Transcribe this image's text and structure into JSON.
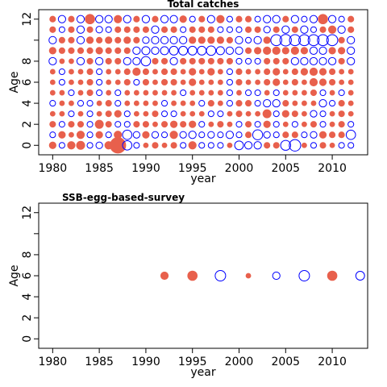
{
  "colors": {
    "positive": "#e8604c",
    "negative": "#0000ff"
  },
  "chart_data": [
    {
      "type": "scatter",
      "title": "Total catches",
      "xlabel": "year",
      "ylabel": "Age",
      "xlim": [
        1978.5,
        2013.8
      ],
      "ylim": [
        -0.9,
        12.9
      ],
      "xticks": [
        1980,
        1985,
        1990,
        1995,
        2000,
        2005,
        2010
      ],
      "yticks": [
        0,
        2,
        4,
        6,
        8,
        12
      ],
      "years": [
        1980,
        1981,
        1982,
        1983,
        1984,
        1985,
        1986,
        1987,
        1988,
        1989,
        1990,
        1991,
        1992,
        1993,
        1994,
        1995,
        1996,
        1997,
        1998,
        1999,
        2000,
        2001,
        2002,
        2003,
        2004,
        2005,
        2006,
        2007,
        2008,
        2009,
        2010,
        2011,
        2012
      ],
      "ages": [
        0,
        1,
        2,
        3,
        4,
        5,
        6,
        7,
        8,
        9,
        10,
        11,
        12
      ],
      "residuals": [
        [
          0.4,
          -0.3,
          0.5,
          0.6,
          -0.3,
          -0.4,
          0.5,
          2.2,
          -0.8,
          -0.3,
          0.2,
          0.3,
          0.2,
          0.3,
          -0.3,
          0.5,
          -0.3,
          -0.3,
          -0.3,
          0.2,
          -0.7,
          -0.5,
          -0.5,
          0.3,
          0.3,
          -0.9,
          -1.2,
          0.2,
          -0.3,
          0.3,
          0.2,
          -0.3,
          -0.3
        ],
        [
          -0.3,
          0.4,
          0.2,
          0.5,
          -0.3,
          0.4,
          -0.3,
          0.5,
          -0.8,
          -0.4,
          0.4,
          -0.4,
          -0.3,
          0.5,
          -0.4,
          -0.5,
          -0.3,
          -0.4,
          -0.3,
          -0.5,
          -0.3,
          0.3,
          -0.9,
          -0.4,
          -0.3,
          0.3,
          0.3,
          -0.3,
          -0.4,
          0.4,
          0.3,
          0.3,
          -0.8
        ],
        [
          0.3,
          -0.3,
          0.3,
          0.3,
          -0.3,
          0.6,
          0.3,
          -0.3,
          -0.3,
          0.3,
          0.3,
          0.2,
          0.3,
          0.4,
          0.3,
          0.4,
          -0.3,
          0.2,
          0.3,
          0.2,
          -0.3,
          0.3,
          -0.3,
          0.4,
          -0.3,
          0.2,
          -0.3,
          0.2,
          0.3,
          -0.3,
          0.2,
          0.3,
          -0.3
        ],
        [
          0.2,
          0.2,
          -0.3,
          0.2,
          -0.3,
          0.2,
          0.3,
          0.4,
          -0.3,
          0.2,
          0.2,
          0.3,
          -0.3,
          -0.3,
          0.2,
          0.2,
          0.2,
          -0.3,
          -0.3,
          0.2,
          0.3,
          0.2,
          0.2,
          0.6,
          -0.3,
          0.4,
          0.3,
          0.2,
          -0.4,
          -0.3,
          0.2,
          0.3,
          0.2
        ],
        [
          -0.3,
          0.2,
          0.2,
          -0.3,
          -0.3,
          0.2,
          0.3,
          -0.3,
          0.2,
          0.2,
          0.2,
          0.2,
          -0.3,
          0.2,
          0.2,
          0.2,
          -0.3,
          0.3,
          0.2,
          -0.3,
          0.3,
          0.3,
          -0.3,
          -0.5,
          -0.5,
          0.3,
          0.2,
          0.2,
          0.2,
          -0.5,
          -0.3,
          0.3,
          0.2
        ],
        [
          0.2,
          0.2,
          -0.3,
          0.2,
          0.3,
          -0.3,
          0.2,
          -0.3,
          0.2,
          0.2,
          0.2,
          0.2,
          0.2,
          0.2,
          -0.3,
          0.2,
          0.2,
          0.2,
          0.2,
          -0.3,
          0.2,
          -0.3,
          -0.3,
          0.2,
          -0.3,
          0.2,
          0.2,
          0.2,
          0.3,
          -0.3,
          0.2,
          -0.3,
          0.2
        ],
        [
          0.2,
          -0.3,
          0.2,
          0.2,
          0.3,
          -0.3,
          0.2,
          0.2,
          0.3,
          -0.3,
          0.3,
          0.2,
          0.3,
          0.3,
          0.2,
          0.4,
          0.2,
          0.2,
          0.2,
          -0.3,
          0.3,
          0.2,
          0.2,
          0.3,
          0.4,
          0.2,
          0.3,
          0.2,
          0.5,
          0.4,
          0.3,
          0.2,
          0.2
        ],
        [
          0.2,
          -0.3,
          0.2,
          0.2,
          0.3,
          -0.3,
          0.2,
          0.2,
          0.3,
          0.5,
          0.3,
          0.2,
          0.3,
          0.3,
          0.2,
          0.4,
          0.2,
          0.4,
          0.2,
          -0.3,
          0.3,
          0.2,
          0.2,
          0.3,
          0.4,
          0.2,
          0.3,
          0.4,
          0.5,
          0.4,
          0.3,
          0.2,
          0.2
        ],
        [
          -0.5,
          0.2,
          0.2,
          -0.5,
          0.3,
          -0.5,
          0.3,
          0.3,
          -0.5,
          -0.5,
          -0.8,
          0.3,
          0.3,
          -0.5,
          0.3,
          0.3,
          0.3,
          0.3,
          0.3,
          0.3,
          -0.3,
          -0.3,
          -0.3,
          0.3,
          0.3,
          0.3,
          -0.5,
          -0.5,
          -0.5,
          -0.5,
          -0.5,
          0.3,
          -0.5
        ],
        [
          0.4,
          0.3,
          0.3,
          0.3,
          0.3,
          0.4,
          0.3,
          0.3,
          0.3,
          -0.5,
          -0.6,
          -0.5,
          -0.6,
          -0.7,
          -0.7,
          -0.7,
          -0.7,
          -0.8,
          -0.6,
          -0.5,
          -0.5,
          0.3,
          0.4,
          0.5,
          0.5,
          0.4,
          0.5,
          0.4,
          -0.5,
          -0.5,
          0.4,
          0.4,
          -0.5
        ],
        [
          -0.5,
          0.3,
          0.3,
          -0.5,
          0.4,
          0.3,
          0.4,
          0.3,
          0.4,
          0.3,
          -0.4,
          -0.5,
          -0.5,
          -0.5,
          -0.5,
          0.4,
          0.4,
          0.4,
          0.4,
          0.3,
          -0.5,
          -0.3,
          -0.5,
          0.4,
          -1.1,
          -1.2,
          -1.1,
          -1.1,
          -1.1,
          -1.1,
          -1.1,
          0.3,
          -0.5
        ],
        [
          0.3,
          -0.3,
          0.3,
          -0.5,
          0.3,
          -0.4,
          -0.3,
          0.3,
          0.3,
          0.3,
          0.3,
          -0.5,
          0.3,
          0.3,
          -0.3,
          0.3,
          0.3,
          0.3,
          -0.3,
          -0.3,
          -0.3,
          0.3,
          0.3,
          -0.4,
          0.3,
          -0.5,
          0.3,
          -0.5,
          -0.3,
          0.3,
          0.5,
          -0.5,
          0.3
        ],
        [
          0.3,
          -0.5,
          0.3,
          -0.5,
          0.8,
          -0.5,
          -0.5,
          0.5,
          -0.5,
          0.3,
          -0.5,
          0.3,
          -0.5,
          -0.5,
          0.4,
          -0.3,
          0.3,
          -0.5,
          0.5,
          -0.3,
          0.3,
          0.3,
          -0.3,
          -0.5,
          -0.5,
          0.3,
          -0.5,
          -0.3,
          -0.5,
          0.8,
          -0.5,
          -0.3,
          0.3
        ]
      ]
    },
    {
      "type": "scatter",
      "title": "SSB-egg-based-survey",
      "xlabel": "year",
      "ylabel": "Age",
      "xlim": [
        1978.5,
        2013.8
      ],
      "ylim": [
        -0.9,
        12.9
      ],
      "xticks": [
        1980,
        1985,
        1990,
        1995,
        2000,
        2005,
        2010
      ],
      "yticks": [
        0,
        2,
        4,
        6,
        8,
        12
      ],
      "points": [
        {
          "year": 1992,
          "age": 6,
          "residual": 0.5
        },
        {
          "year": 1995,
          "age": 6,
          "residual": 0.8
        },
        {
          "year": 1998,
          "age": 6,
          "residual": -1.0
        },
        {
          "year": 2001,
          "age": 6,
          "residual": 0.2
        },
        {
          "year": 2004,
          "age": 6,
          "residual": -0.5
        },
        {
          "year": 2007,
          "age": 6,
          "residual": -1.0
        },
        {
          "year": 2010,
          "age": 6,
          "residual": 0.8
        },
        {
          "year": 2013,
          "age": 6,
          "residual": -0.7
        }
      ]
    }
  ]
}
